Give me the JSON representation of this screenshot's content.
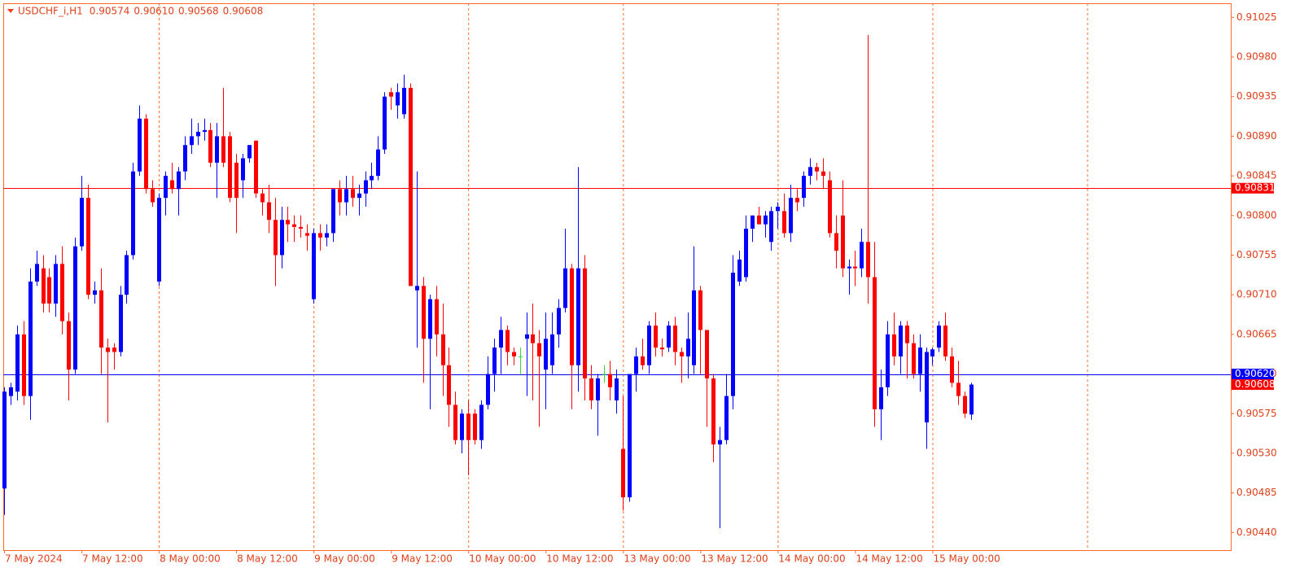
{
  "chart_data": {
    "type": "candlestick",
    "symbol": "USDCHF_i,H1",
    "header_values": [
      "0.90574",
      "0.90610",
      "0.90568",
      "0.90608"
    ],
    "up_color": "#0000ff",
    "down_color": "#ff0000",
    "doji_color": "#33dd33",
    "ylim": [
      0.9042,
      0.91041
    ],
    "yticks": [
      0.91025,
      {
        "value": 0.9098,
        "label": "0.90980"
      },
      0.90935,
      {
        "value": 0.9089,
        "label": "0.90890"
      },
      0.90845,
      {
        "value": 0.908,
        "label": "0.90800"
      },
      0.90755,
      {
        "value": 0.9071,
        "label": "0.90710"
      },
      0.90665,
      {
        "value": 0.9062,
        "label": "0.90620"
      },
      0.90575,
      {
        "value": 0.9053,
        "label": "0.90530"
      },
      0.90485,
      {
        "value": 0.9044,
        "label": "0.90440"
      }
    ],
    "levels": [
      {
        "value": 0.90831,
        "label": "0.90831",
        "color": "#ff0000",
        "line": true
      },
      {
        "value": 0.9062,
        "label": "0.90620",
        "color": "#0000ff",
        "line": true
      },
      {
        "value": 0.90608,
        "label": "0.90608",
        "color": "#ff0000",
        "line": false
      }
    ],
    "categories": [
      "7 May 2024",
      null,
      null,
      null,
      null,
      null,
      null,
      null,
      null,
      null,
      null,
      null,
      "7 May 12:00",
      null,
      null,
      null,
      null,
      null,
      null,
      null,
      null,
      null,
      null,
      null,
      "8 May 00:00",
      null,
      null,
      null,
      null,
      null,
      null,
      null,
      null,
      null,
      null,
      null,
      "8 May 12:00",
      null,
      null,
      null,
      null,
      null,
      null,
      null,
      null,
      null,
      null,
      null,
      "9 May 00:00",
      null,
      null,
      null,
      null,
      null,
      null,
      null,
      null,
      null,
      null,
      null,
      "9 May 12:00",
      null,
      null,
      null,
      null,
      null,
      null,
      null,
      null,
      null,
      null,
      null,
      "10 May 00:00",
      null,
      null,
      null,
      null,
      null,
      null,
      null,
      null,
      null,
      null,
      null,
      "10 May 12:00",
      null,
      null,
      null,
      null,
      null,
      null,
      null,
      null,
      null,
      null,
      null,
      "13 May 00:00",
      null,
      null,
      null,
      null,
      null,
      null,
      null,
      null,
      null,
      null,
      null,
      "13 May 12:00",
      null,
      null,
      null,
      null,
      null,
      null,
      null,
      null,
      null,
      null,
      null,
      "14 May 00:00",
      null,
      null,
      null,
      null,
      null,
      null,
      null,
      null,
      null,
      null,
      null,
      "14 May 12:00",
      null,
      null,
      null,
      null,
      null,
      null,
      null,
      null,
      null,
      null,
      null,
      "15 May 00:00",
      null,
      null,
      null,
      null,
      null,
      null
    ],
    "candles": [
      [
        0.9049,
        0.90605,
        0.9046,
        0.906
      ],
      [
        0.90595,
        0.9061,
        0.90585,
        0.90605
      ],
      [
        0.906,
        0.90675,
        0.9059,
        0.90665
      ],
      [
        0.90665,
        0.9068,
        0.90585,
        0.90595
      ],
      [
        0.90595,
        0.9074,
        0.90568,
        0.90725
      ],
      [
        0.90725,
        0.9076,
        0.9072,
        0.90745
      ],
      [
        0.9074,
        0.90755,
        0.9069,
        0.907
      ],
      [
        0.9073,
        0.9074,
        0.9069,
        0.907
      ],
      [
        0.907,
        0.90755,
        0.90685,
        0.90745
      ],
      [
        0.90745,
        0.90765,
        0.90665,
        0.9068
      ],
      [
        0.9068,
        0.9069,
        0.9059,
        0.90625
      ],
      [
        0.90625,
        0.90775,
        0.9062,
        0.90765
      ],
      [
        0.90765,
        0.90845,
        0.9076,
        0.9082
      ],
      [
        0.9082,
        0.90835,
        0.90705,
        0.9071
      ],
      [
        0.9071,
        0.90725,
        0.907,
        0.90715
      ],
      [
        0.90715,
        0.9074,
        0.9062,
        0.9065
      ],
      [
        0.9065,
        0.9066,
        0.90565,
        0.90645
      ],
      [
        0.9065,
        0.90655,
        0.90625,
        0.90645
      ],
      [
        0.90645,
        0.9072,
        0.9064,
        0.9071
      ],
      [
        0.9071,
        0.9076,
        0.907,
        0.90755
      ],
      [
        0.90755,
        0.9086,
        0.9075,
        0.9085
      ],
      [
        0.9085,
        0.90925,
        0.90845,
        0.9091
      ],
      [
        0.9091,
        0.90915,
        0.90825,
        0.9083
      ],
      [
        0.9083,
        0.9084,
        0.9081,
        0.90815
      ],
      [
        0.90725,
        0.90825,
        0.9072,
        0.9082
      ],
      [
        0.9082,
        0.9085,
        0.908,
        0.90845
      ],
      [
        0.9084,
        0.9086,
        0.90825,
        0.9083
      ],
      [
        0.9083,
        0.90855,
        0.908,
        0.9085
      ],
      [
        0.9085,
        0.9089,
        0.9084,
        0.9088
      ],
      [
        0.9088,
        0.9091,
        0.9087,
        0.9089
      ],
      [
        0.9089,
        0.90905,
        0.9088,
        0.90895
      ],
      [
        0.90895,
        0.9091,
        0.90885,
        0.90897
      ],
      [
        0.90897,
        0.90905,
        0.90855,
        0.9086
      ],
      [
        0.9086,
        0.90905,
        0.9082,
        0.9089
      ],
      [
        0.9089,
        0.90945,
        0.90855,
        0.9086
      ],
      [
        0.9089,
        0.90895,
        0.90815,
        0.9082
      ],
      [
        0.9086,
        0.9087,
        0.9078,
        0.9082
      ],
      [
        0.9084,
        0.9087,
        0.9082,
        0.90865
      ],
      [
        0.90865,
        0.9088,
        0.9086,
        0.9088
      ],
      [
        0.90885,
        0.90885,
        0.9082,
        0.90825
      ],
      [
        0.90825,
        0.9083,
        0.908,
        0.90815
      ],
      [
        0.90815,
        0.90835,
        0.9078,
        0.90795
      ],
      [
        0.90795,
        0.9082,
        0.9072,
        0.90755
      ],
      [
        0.90755,
        0.9081,
        0.9074,
        0.90795
      ],
      [
        0.90795,
        0.9081,
        0.9077,
        0.9079
      ],
      [
        0.9079,
        0.908,
        0.9077,
        0.90787
      ],
      [
        0.90787,
        0.908,
        0.90775,
        0.90785
      ],
      [
        0.9078,
        0.9079,
        0.9076,
        0.90777
      ],
      [
        0.90705,
        0.90785,
        0.907,
        0.9078
      ],
      [
        0.9078,
        0.9079,
        0.9076,
        0.90775
      ],
      [
        0.90775,
        0.9079,
        0.90765,
        0.9078
      ],
      [
        0.9078,
        0.9083,
        0.9077,
        0.9083
      ],
      [
        0.9083,
        0.9084,
        0.908,
        0.90815
      ],
      [
        0.90815,
        0.90845,
        0.908,
        0.9083
      ],
      [
        0.9083,
        0.90845,
        0.9081,
        0.9082
      ],
      [
        0.9082,
        0.90835,
        0.908,
        0.90825
      ],
      [
        0.90825,
        0.9085,
        0.9081,
        0.9084
      ],
      [
        0.9084,
        0.9086,
        0.9083,
        0.90845
      ],
      [
        0.90845,
        0.9089,
        0.9084,
        0.90875
      ],
      [
        0.90875,
        0.9094,
        0.9087,
        0.90935
      ],
      [
        0.9094,
        0.90945,
        0.9092,
        0.90935
      ],
      [
        0.90925,
        0.9095,
        0.9091,
        0.9094
      ],
      [
        0.90915,
        0.9096,
        0.9091,
        0.90945
      ],
      [
        0.90945,
        0.9095,
        0.9072,
        0.9072
      ],
      [
        0.90715,
        0.9085,
        0.9065,
        0.9072
      ],
      [
        0.9072,
        0.9073,
        0.9061,
        0.9066
      ],
      [
        0.9066,
        0.9071,
        0.9058,
        0.90705
      ],
      [
        0.90705,
        0.9072,
        0.9064,
        0.90665
      ],
      [
        0.90665,
        0.907,
        0.90595,
        0.9063
      ],
      [
        0.9063,
        0.9065,
        0.9056,
        0.90585
      ],
      [
        0.90585,
        0.906,
        0.9054,
        0.90545
      ],
      [
        0.90545,
        0.9058,
        0.9053,
        0.90575
      ],
      [
        0.90575,
        0.9059,
        0.90505,
        0.90545
      ],
      [
        0.90575,
        0.9058,
        0.9054,
        0.90545
      ],
      [
        0.90545,
        0.9059,
        0.90535,
        0.90585
      ],
      [
        0.90585,
        0.9064,
        0.9058,
        0.9062
      ],
      [
        0.9062,
        0.9066,
        0.906,
        0.9065
      ],
      [
        0.9065,
        0.90685,
        0.9062,
        0.9067
      ],
      [
        0.9067,
        0.90675,
        0.9063,
        0.90645
      ],
      [
        0.90645,
        0.9065,
        0.9063,
        0.9064
      ],
      [
        0.9064,
        0.9065,
        0.9062,
        0.9064
      ],
      [
        0.9066,
        0.9069,
        0.90595,
        0.90665
      ],
      [
        0.90665,
        0.907,
        0.9059,
        0.90655
      ],
      [
        0.90655,
        0.9067,
        0.9056,
        0.9064
      ],
      [
        0.90625,
        0.9069,
        0.9058,
        0.9066
      ],
      [
        0.9063,
        0.9069,
        0.9062,
        0.90665
      ],
      [
        0.90665,
        0.90705,
        0.9065,
        0.90695
      ],
      [
        0.90695,
        0.90785,
        0.9069,
        0.9074
      ],
      [
        0.9074,
        0.90745,
        0.9058,
        0.9063
      ],
      [
        0.9063,
        0.90855,
        0.906,
        0.9074
      ],
      [
        0.9074,
        0.90755,
        0.9059,
        0.90615
      ],
      [
        0.90615,
        0.9063,
        0.9058,
        0.9059
      ],
      [
        0.9059,
        0.9062,
        0.9055,
        0.90615
      ],
      [
        0.9062,
        0.9063,
        0.9061,
        0.9062
      ],
      [
        0.9062,
        0.90635,
        0.9059,
        0.90605
      ],
      [
        0.9059,
        0.90625,
        0.90575,
        0.90615
      ],
      [
        0.90535,
        0.90595,
        0.90465,
        0.9048
      ],
      [
        0.9048,
        0.9062,
        0.90475,
        0.9062
      ],
      [
        0.9062,
        0.9065,
        0.906,
        0.9064
      ],
      [
        0.9064,
        0.9066,
        0.90625,
        0.9063
      ],
      [
        0.9063,
        0.9068,
        0.9062,
        0.90675
      ],
      [
        0.90675,
        0.9069,
        0.9064,
        0.9065
      ],
      [
        0.9065,
        0.9066,
        0.9064,
        0.90648
      ],
      [
        0.9065,
        0.9068,
        0.90645,
        0.90675
      ],
      [
        0.90675,
        0.90685,
        0.9063,
        0.90645
      ],
      [
        0.90645,
        0.9065,
        0.9061,
        0.9064
      ],
      [
        0.9064,
        0.9069,
        0.90615,
        0.9066
      ],
      [
        0.9063,
        0.90765,
        0.9062,
        0.90715
      ],
      [
        0.90715,
        0.9072,
        0.9062,
        0.9067
      ],
      [
        0.9067,
        0.9067,
        0.9056,
        0.90615
      ],
      [
        0.90615,
        0.9062,
        0.9052,
        0.9054
      ],
      [
        0.9054,
        0.9056,
        0.90445,
        0.90545
      ],
      [
        0.90545,
        0.9062,
        0.9054,
        0.90595
      ],
      [
        0.90595,
        0.90755,
        0.9058,
        0.90735
      ],
      [
        0.90725,
        0.9076,
        0.9072,
        0.9075
      ],
      [
        0.9073,
        0.908,
        0.90725,
        0.90785
      ],
      [
        0.90785,
        0.908,
        0.9077,
        0.908
      ],
      [
        0.908,
        0.9081,
        0.9079,
        0.9079
      ],
      [
        0.9079,
        0.90805,
        0.90775,
        0.908
      ],
      [
        0.9077,
        0.9081,
        0.9076,
        0.90805
      ],
      [
        0.90805,
        0.90815,
        0.90785,
        0.9081
      ],
      [
        0.90805,
        0.90825,
        0.90775,
        0.9078
      ],
      [
        0.9078,
        0.90835,
        0.9077,
        0.9082
      ],
      [
        0.9082,
        0.9083,
        0.90805,
        0.90815
      ],
      [
        0.9082,
        0.9085,
        0.9081,
        0.90845
      ],
      [
        0.90845,
        0.90865,
        0.90835,
        0.90855
      ],
      [
        0.90855,
        0.9086,
        0.9084,
        0.9085
      ],
      [
        0.9085,
        0.90865,
        0.9083,
        0.90845
      ],
      [
        0.9084,
        0.9085,
        0.90775,
        0.9078
      ],
      [
        0.9078,
        0.908,
        0.9074,
        0.9076
      ],
      [
        0.908,
        0.9084,
        0.9073,
        0.9074
      ],
      [
        0.9074,
        0.9075,
        0.9071,
        0.90742
      ],
      [
        0.90742,
        0.9076,
        0.9072,
        0.9074
      ],
      [
        0.9074,
        0.90785,
        0.9073,
        0.9077
      ],
      [
        0.9077,
        0.91005,
        0.907,
        0.9073
      ],
      [
        0.9073,
        0.9077,
        0.9056,
        0.9058
      ],
      [
        0.9058,
        0.90625,
        0.90545,
        0.90605
      ],
      [
        0.90605,
        0.9068,
        0.90595,
        0.90665
      ],
      [
        0.90665,
        0.9069,
        0.9063,
        0.9064
      ],
      [
        0.9064,
        0.9068,
        0.9062,
        0.90675
      ],
      [
        0.90675,
        0.9068,
        0.90615,
        0.90655
      ],
      [
        0.90655,
        0.90665,
        0.90615,
        0.9062
      ],
      [
        0.9062,
        0.90665,
        0.906,
        0.9065
      ],
      [
        0.90565,
        0.9065,
        0.90535,
        0.90645
      ],
      [
        0.9064,
        0.9065,
        0.9063,
        0.90648
      ],
      [
        0.9065,
        0.9068,
        0.90645,
        0.90675
      ],
      [
        0.90675,
        0.9069,
        0.90635,
        0.9064
      ],
      [
        0.9064,
        0.9065,
        0.90605,
        0.9061
      ],
      [
        0.9061,
        0.90635,
        0.90585,
        0.90595
      ],
      [
        0.90595,
        0.906,
        0.9057,
        0.90575
      ],
      [
        0.90574,
        0.9061,
        0.90568,
        0.90608
      ]
    ]
  }
}
